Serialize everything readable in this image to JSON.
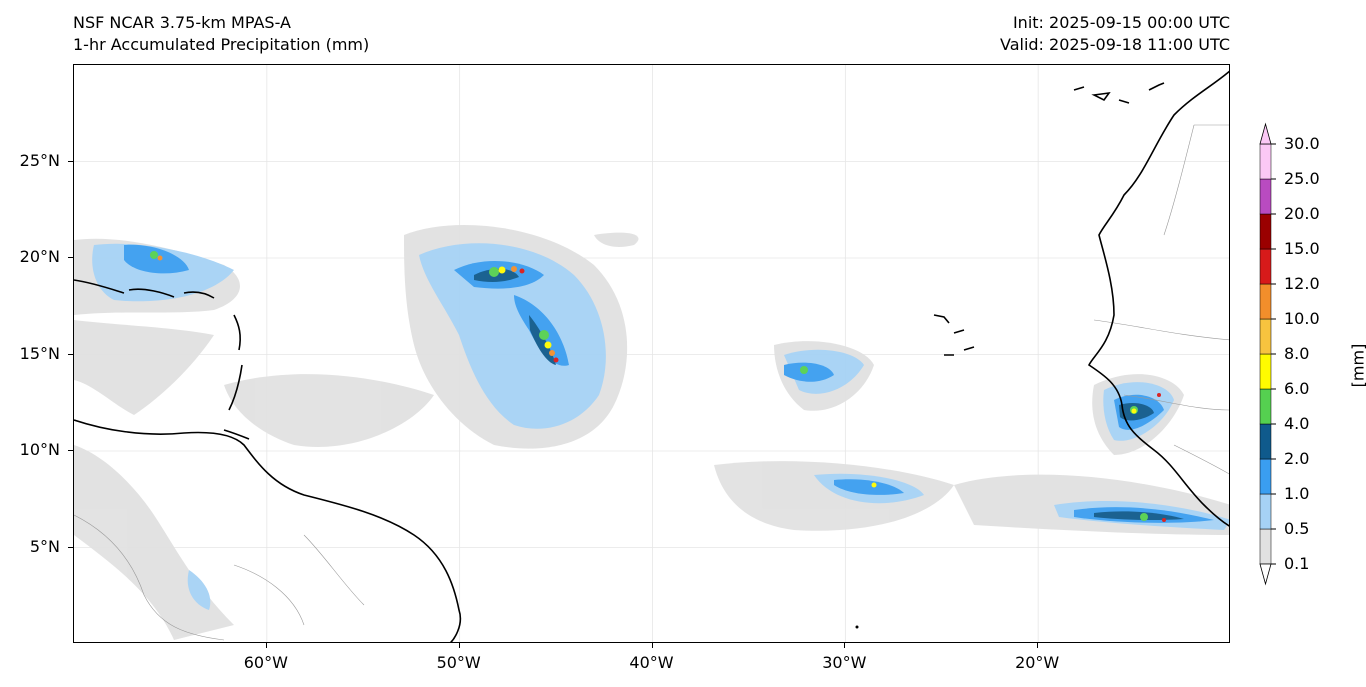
{
  "header": {
    "title_line1": "NSF NCAR 3.75-km MPAS-A",
    "title_line2": "1-hr Accumulated Precipitation (mm)",
    "init_line": "Init: 2025-09-15 00:00 UTC",
    "valid_line": "Valid: 2025-09-18 11:00 UTC"
  },
  "map": {
    "lon_range": [
      -70,
      -10
    ],
    "lat_range": [
      0,
      30
    ],
    "lat_labels": [
      {
        "text": "25°N",
        "lat": 25
      },
      {
        "text": "20°N",
        "lat": 20
      },
      {
        "text": "15°N",
        "lat": 15
      },
      {
        "text": "10°N",
        "lat": 10
      },
      {
        "text": "5°N",
        "lat": 5
      }
    ],
    "lon_labels": [
      {
        "text": "60°W",
        "lon": -60
      },
      {
        "text": "50°W",
        "lon": -50
      },
      {
        "text": "40°W",
        "lon": -40
      },
      {
        "text": "30°W",
        "lon": -30
      },
      {
        "text": "20°W",
        "lon": -20
      }
    ],
    "gridline_color": "#e6e6e6",
    "coastline_color": "#000000",
    "border_color": "#999999"
  },
  "colorbar": {
    "unit_label": "[mm]",
    "levels": [
      "0.1",
      "0.5",
      "1.0",
      "2.0",
      "4.0",
      "6.0",
      "8.0",
      "10.0",
      "12.0",
      "15.0",
      "20.0",
      "25.0",
      "30.0"
    ],
    "colors": [
      "#e1e1e1",
      "#a6d2f5",
      "#3a9ef0",
      "#0f5a8c",
      "#55d050",
      "#fffb00",
      "#f7c33f",
      "#f28e2b",
      "#d71a1a",
      "#9a0000",
      "#b94bc0",
      "#fbc8f5"
    ]
  }
}
